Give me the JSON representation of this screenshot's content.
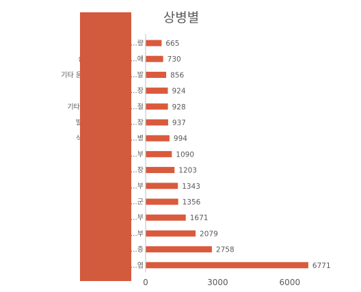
{
  "chart_data": {
    "type": "bar",
    "orientation": "horizontal",
    "title": "상병별",
    "xlabel": "",
    "ylabel": "",
    "categories": [
      "…량",
      "신경뿌리병증을 동…애",
      "기타 윤활막염 및 힘줄윤…발",
      "…장",
      "기타 윤활막염 및 힘줄…절",
      "발목의 상세불명 부…장",
      "식도염을 동반하지 …병",
      "…부",
      "…장",
      "…부",
      "…군",
      "…부",
      "…부",
      "…증",
      "양쪽…염"
    ],
    "values": [
      665,
      730,
      856,
      924,
      928,
      937,
      994,
      1090,
      1203,
      1343,
      1356,
      1671,
      2079,
      2758,
      6771
    ],
    "data_labels": [
      "665",
      "730",
      "856",
      "924",
      "928",
      "937",
      "994",
      "1090",
      "1203",
      "1343",
      "1356",
      "1671",
      "2079",
      "2758",
      "6771"
    ],
    "xlim": [
      0,
      7200
    ],
    "xticks": [
      0,
      3000,
      6000
    ],
    "xtick_labels": [
      "0",
      "3000",
      "6000"
    ],
    "grid": false,
    "legend": "none",
    "colors": {
      "bar": "#d95a3c",
      "mask": "#d25a3d",
      "text": "#595959",
      "title": "#595959",
      "axis": "#bfbfbf"
    }
  }
}
